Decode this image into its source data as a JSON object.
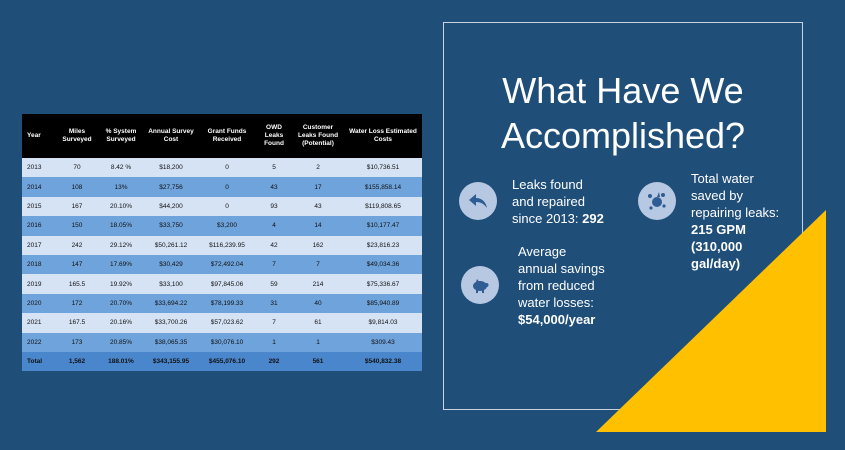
{
  "title_line1": "What Have We",
  "title_line2": "Accomplished?",
  "table": {
    "headers": [
      "Year",
      "Miles Surveyed",
      "% System Surveyed",
      "Annual Survey Cost",
      "Grant Funds Received",
      "OWD Leaks Found",
      "Customer Leaks Found (Potential)",
      "Water Loss Estimated Costs"
    ],
    "rows": [
      [
        "2013",
        "70",
        "8.42 %",
        "$18,200",
        "0",
        "5",
        "2",
        "$10,736.51"
      ],
      [
        "2014",
        "108",
        "13%",
        "$27,756",
        "0",
        "43",
        "17",
        "$155,858.14"
      ],
      [
        "2015",
        "167",
        "20.10%",
        "$44,200",
        "0",
        "93",
        "43",
        "$119,808.65"
      ],
      [
        "2016",
        "150",
        "18.05%",
        "$33,750",
        "$3,200",
        "4",
        "14",
        "$10,177.47"
      ],
      [
        "2017",
        "242",
        "29.12%",
        "$50,261.12",
        "$116,239.95",
        "42",
        "162",
        "$23,816.23"
      ],
      [
        "2018",
        "147",
        "17.69%",
        "$30,429",
        "$72,492.04",
        "7",
        "7",
        "$49,034.36"
      ],
      [
        "2019",
        "165.5",
        "19.92%",
        "$33,100",
        "$97,845.06",
        "59",
        "214",
        "$75,336.67"
      ],
      [
        "2020",
        "172",
        "20.70%",
        "$33,694.22",
        "$78,199.33",
        "31",
        "40",
        "$85,940.89"
      ],
      [
        "2021",
        "167.5",
        "20.16%",
        "$33,700.26",
        "$57,023.62",
        "7",
        "61",
        "$9,814.03"
      ],
      [
        "2022",
        "173",
        "20.85%",
        "$38,065.35",
        "$30,076.10",
        "1",
        "1",
        "$309.43"
      ]
    ],
    "total": [
      "Total",
      "1,562",
      "188.01%",
      "$343,155.95",
      "$455,076.10",
      "292",
      "561",
      "$540,832.38"
    ]
  },
  "stats": {
    "leaks": {
      "line1": "Leaks found",
      "line2": "and repaired",
      "line3": "since 2013: ",
      "value": "292",
      "icon": "reply-arrow-icon"
    },
    "water": {
      "line1": "Total water",
      "line2": "saved by",
      "line3": "repairing leaks:",
      "value1": "215 GPM",
      "value2": "(310,000",
      "value3": "gal/day)",
      "icon": "splash-icon"
    },
    "savings": {
      "line1": "Average",
      "line2": "annual savings",
      "line3": "from reduced",
      "line4": "water losses:",
      "value": "$54,000/year",
      "icon": "piggy-bank-icon"
    }
  },
  "colors": {
    "background": "#1f4e79",
    "accent": "#ffc000",
    "row_light": "#d5e3f5",
    "row_dark": "#6ea3dc"
  }
}
